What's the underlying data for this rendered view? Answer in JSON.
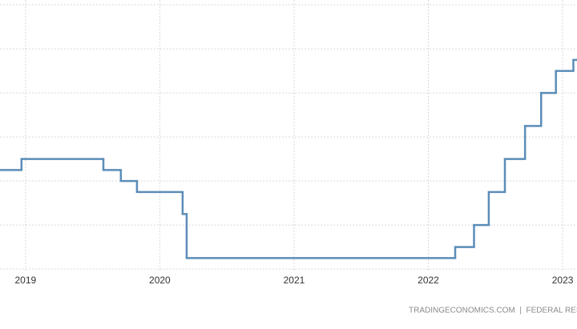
{
  "chart_data": {
    "type": "line",
    "step": "post",
    "x": [
      2018.81,
      2018.97,
      2019.58,
      2019.71,
      2019.83,
      2020.17,
      2020.2,
      2022.2,
      2022.34,
      2022.45,
      2022.57,
      2022.72,
      2022.84,
      2022.95,
      2023.08
    ],
    "series": [
      {
        "color": "#5b8db8",
        "values": [
          2.25,
          2.5,
          2.25,
          2.0,
          1.75,
          1.25,
          0.25,
          0.5,
          1.0,
          1.75,
          2.5,
          3.25,
          4.0,
          4.5,
          4.75
        ]
      }
    ],
    "xlim": [
      2018.81,
      2023.107
    ],
    "xticks": [
      2019,
      2020,
      2021,
      2022,
      2023
    ],
    "ylim": [
      -0.07,
      6.11
    ],
    "yticks": [
      0,
      1,
      2,
      3,
      4,
      5,
      6
    ],
    "grid": true,
    "source": "TRADINGECONOMICS.COM  |  FEDERAL RES"
  }
}
